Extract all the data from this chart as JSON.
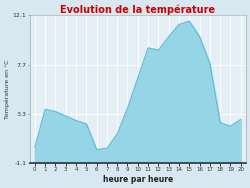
{
  "title": "Evolution de la température",
  "xlabel": "heure par heure",
  "ylabel": "Température en °C",
  "background_color": "#d8e8f0",
  "plot_bg_color": "#e4f0f6",
  "title_color": "#cc0000",
  "fill_color": "#96d4e8",
  "line_color": "#60b8d4",
  "ylim": [
    -1.1,
    12.1
  ],
  "yticks": [
    -1.1,
    3.3,
    7.7,
    12.1
  ],
  "ytick_labels": [
    "-1.1",
    "3.3",
    "7.7",
    "12.1"
  ],
  "hours": [
    0,
    1,
    2,
    3,
    4,
    5,
    6,
    7,
    8,
    9,
    10,
    11,
    12,
    13,
    14,
    15,
    16,
    17,
    18,
    19,
    20
  ],
  "temperatures": [
    0.3,
    3.7,
    3.5,
    3.1,
    2.7,
    2.4,
    0.1,
    0.2,
    1.5,
    3.8,
    6.5,
    9.2,
    9.0,
    10.2,
    11.3,
    11.6,
    10.2,
    7.8,
    2.5,
    2.2,
    2.8
  ]
}
